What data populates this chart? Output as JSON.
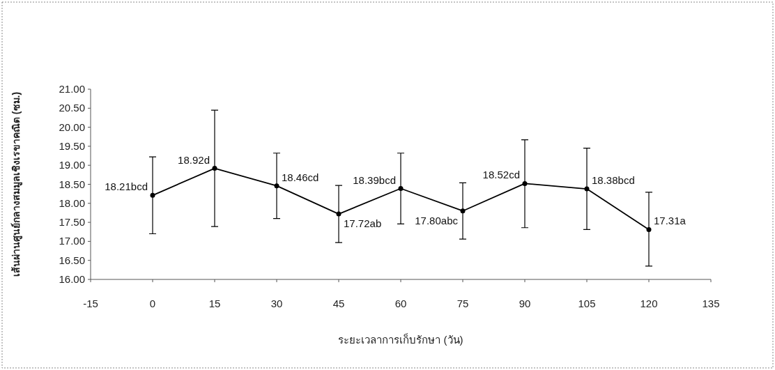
{
  "chart_data": {
    "type": "line",
    "xlabel": "ระยะเวลาการเก็บรักษา (วัน)",
    "ylabel": "เส้นผ่านศูนย์กลางสมมูลเชิงเรขาคณิต (ซม.)",
    "x": [
      0,
      15,
      30,
      45,
      60,
      75,
      90,
      105,
      120
    ],
    "series": [
      {
        "color": "#000000",
        "values": [
          18.21,
          18.92,
          18.46,
          17.72,
          18.39,
          17.8,
          18.52,
          18.38,
          17.31
        ],
        "errors": [
          [
            17.2,
            19.22
          ],
          [
            17.39,
            20.45
          ],
          [
            17.6,
            19.32
          ],
          [
            16.97,
            18.47
          ],
          [
            17.46,
            19.32
          ],
          [
            17.06,
            18.54
          ],
          [
            17.36,
            19.67
          ],
          [
            17.31,
            19.45
          ],
          [
            16.35,
            18.29
          ]
        ],
        "value_labels": [
          "18.21bcd",
          "18.92d",
          "18.46cd",
          "17.72ab",
          "18.39bcd",
          "17.80abc",
          "18.52cd",
          "18.38bcd",
          "17.31a"
        ]
      }
    ],
    "xlim": [
      -15,
      135
    ],
    "xticks": [
      -15,
      0,
      15,
      30,
      45,
      60,
      75,
      90,
      105,
      120,
      135
    ],
    "ylim": [
      16,
      21
    ],
    "yticks": [
      {
        "value": 16,
        "label": "16.00"
      },
      {
        "value": 16.5,
        "label": "16.50"
      },
      {
        "value": 17,
        "label": "17.00"
      },
      {
        "value": 17.5,
        "label": "17.50"
      },
      {
        "value": 18,
        "label": "18.00"
      },
      {
        "value": 18.5,
        "label": "18.50"
      },
      {
        "value": 19,
        "label": "19.00"
      },
      {
        "value": 19.5,
        "label": "19.50"
      },
      {
        "value": 20,
        "label": "20.00"
      },
      {
        "value": 20.5,
        "label": "20.50"
      },
      {
        "value": 21,
        "label": "21.00"
      }
    ],
    "grid": false,
    "marker": "circle",
    "line_style": "solid"
  }
}
